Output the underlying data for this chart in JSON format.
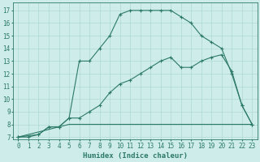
{
  "xlabel": "Humidex (Indice chaleur)",
  "background_color": "#cdecea",
  "grid_color": "#aed8d5",
  "line_color": "#2d7a6a",
  "xlim": [
    -0.5,
    23.5
  ],
  "ylim": [
    6.8,
    17.6
  ],
  "xticks": [
    0,
    1,
    2,
    3,
    4,
    5,
    6,
    7,
    8,
    9,
    10,
    11,
    12,
    13,
    14,
    15,
    16,
    17,
    18,
    19,
    20,
    21,
    22,
    23
  ],
  "yticks": [
    7,
    8,
    9,
    10,
    11,
    12,
    13,
    14,
    15,
    16,
    17
  ],
  "line1_x": [
    0,
    1,
    2,
    3,
    4,
    5,
    6,
    7,
    8,
    9,
    10,
    11,
    12,
    13,
    14,
    15,
    16,
    17,
    18,
    19,
    20,
    21,
    22,
    23
  ],
  "line1_y": [
    7.0,
    7.0,
    7.2,
    7.8,
    7.8,
    8.5,
    13.0,
    13.0,
    14.0,
    15.0,
    16.7,
    17.0,
    17.0,
    17.0,
    17.0,
    17.0,
    16.5,
    16.0,
    15.0,
    14.5,
    14.0,
    12.0,
    9.5,
    8.0
  ],
  "line2_x": [
    0,
    2,
    3,
    4,
    5,
    6,
    7,
    8,
    9,
    10,
    11,
    12,
    13,
    14,
    15,
    16,
    17,
    18,
    19,
    20,
    21,
    22,
    23
  ],
  "line2_y": [
    7.0,
    7.2,
    7.8,
    7.8,
    8.5,
    8.5,
    9.0,
    9.5,
    10.5,
    11.2,
    11.5,
    12.0,
    12.5,
    13.0,
    13.3,
    12.5,
    12.5,
    13.0,
    13.3,
    13.5,
    12.2,
    9.5,
    8.0
  ],
  "line3_x": [
    0,
    4,
    5,
    23
  ],
  "line3_y": [
    7.0,
    7.8,
    8.0,
    8.0
  ]
}
